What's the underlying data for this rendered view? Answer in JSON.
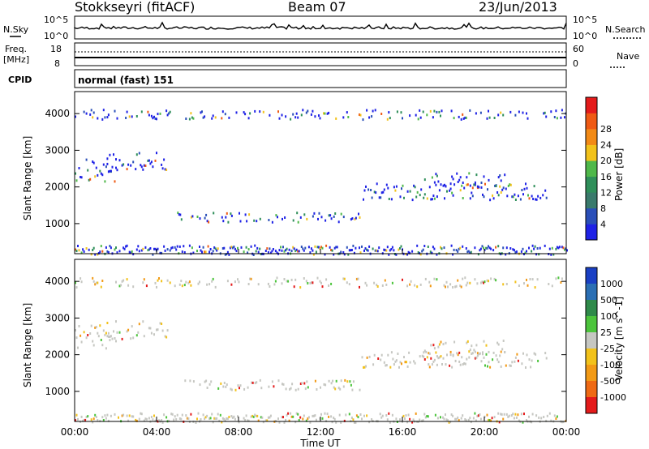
{
  "header": {
    "station": "Stokkseyri (fitACF)",
    "beam": "Beam 07",
    "date": "23/Jun/2013"
  },
  "noise_panel": {
    "left_label": "N.Sky",
    "right_label": "N.Search",
    "left_ticks": [
      "10^5",
      "10^0"
    ],
    "right_ticks": [
      "10^5",
      "10^0"
    ]
  },
  "freq_panel": {
    "left_label_1": "Freq.",
    "left_label_2": "[MHz]",
    "left_ticks": [
      "18",
      "8"
    ],
    "right_label": "Nave",
    "right_ticks": [
      "60",
      "0"
    ]
  },
  "cpid_panel": {
    "label": "CPID",
    "value": "normal (fast) 151"
  },
  "colors": {
    "power_scale": [
      "#1f22e6",
      "#2a4fb8",
      "#3a7a6c",
      "#2f8f5a",
      "#4fb84a",
      "#f2c21b",
      "#f28a16",
      "#ef5a14",
      "#e41b1b"
    ],
    "velocity_scale": [
      "#1a40c4",
      "#2b6fb4",
      "#2f8a4a",
      "#4cc43c",
      "#c6c7c2",
      "#f2c21b",
      "#f29a16",
      "#ef6a14",
      "#e41b1b"
    ]
  },
  "chart_data": [
    {
      "type": "heatmap",
      "name": "power",
      "ylabel": "Slant Range [km]",
      "ylim": [
        180,
        4600
      ],
      "yticks": [
        "1000",
        "2000",
        "3000",
        "4000"
      ],
      "xlim": [
        0,
        24
      ],
      "colorbar": {
        "label": "Power [dB]",
        "ticks": [
          "4",
          "8",
          "12",
          "16",
          "20",
          "24",
          "28"
        ],
        "range": [
          0,
          32
        ]
      }
    },
    {
      "type": "heatmap",
      "name": "velocity",
      "ylabel": "Slant Range [km]",
      "ylim": [
        180,
        4600
      ],
      "yticks": [
        "1000",
        "2000",
        "3000",
        "4000"
      ],
      "xlabel": "Time UT",
      "xticks": [
        "00:00",
        "04:00",
        "08:00",
        "12:00",
        "16:00",
        "20:00",
        "00:00"
      ],
      "xlim": [
        0,
        24
      ],
      "colorbar": {
        "label": "Velocity [m s^-1]",
        "ticks": [
          "1000",
          "500",
          "100",
          "25",
          "-25",
          "-100",
          "-500",
          "-1000"
        ]
      }
    }
  ]
}
